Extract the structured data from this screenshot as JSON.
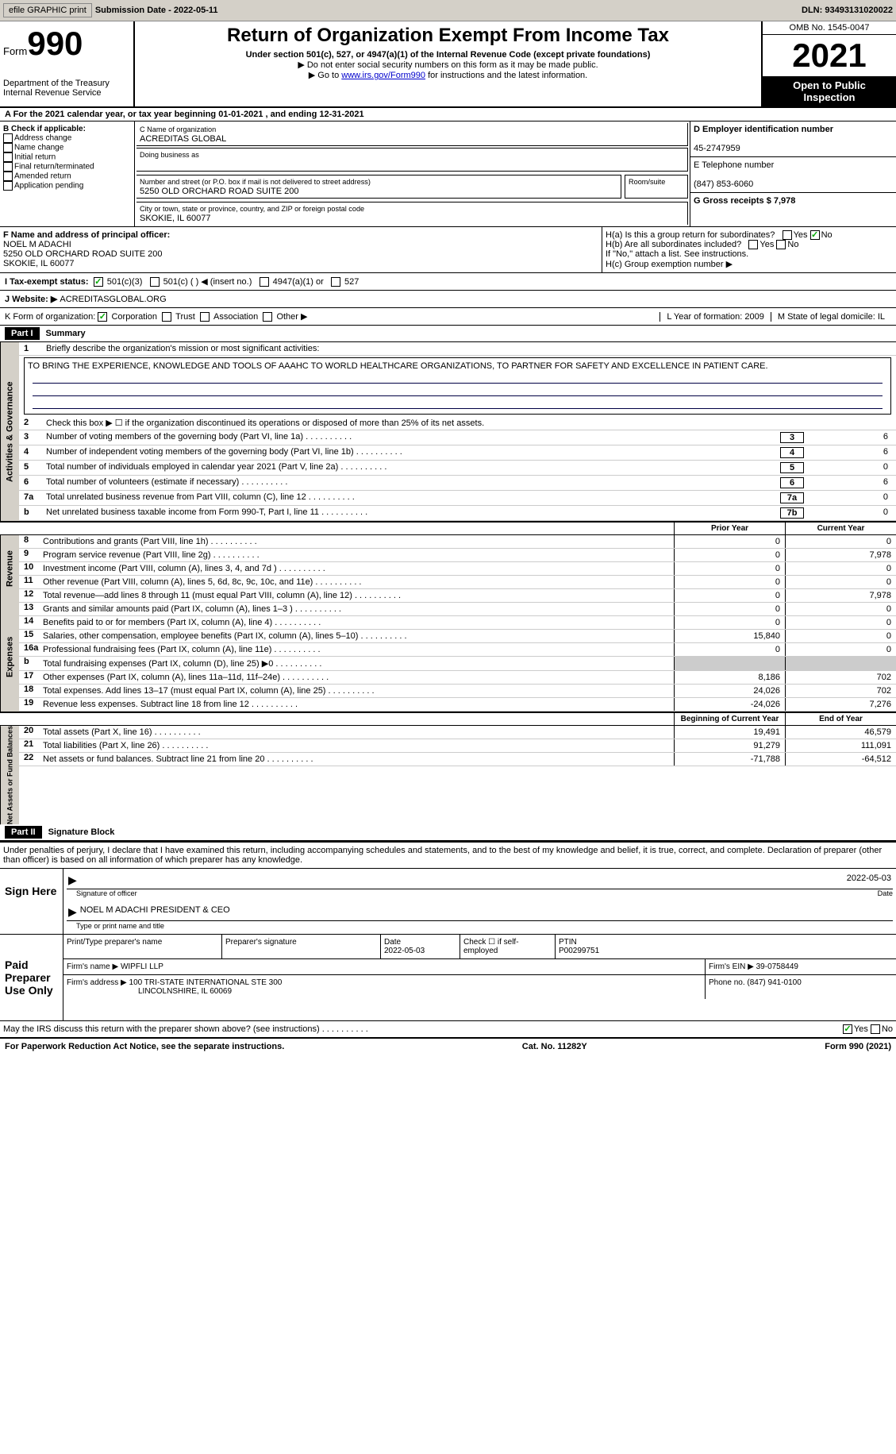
{
  "toolbar": {
    "efile": "efile GRAPHIC print",
    "print_btn": "print -",
    "sub_date_label": "Submission Date - 2022-05-11",
    "dln": "DLN: 93493131020022"
  },
  "header": {
    "form_word": "Form",
    "form_num": "990",
    "title": "Return of Organization Exempt From Income Tax",
    "subtitle": "Under section 501(c), 527, or 4947(a)(1) of the Internal Revenue Code (except private foundations)",
    "note1": "▶ Do not enter social security numbers on this form as it may be made public.",
    "note2_pre": "▶ Go to ",
    "note2_link": "www.irs.gov/Form990",
    "note2_post": " for instructions and the latest information.",
    "dept": "Department of the Treasury",
    "irs": "Internal Revenue Service",
    "omb": "OMB No. 1545-0047",
    "year": "2021",
    "open": "Open to Public Inspection"
  },
  "line_a": "A For the 2021 calendar year, or tax year beginning 01-01-2021    , and ending 12-31-2021",
  "section_b": {
    "hdr": "B Check if applicable:",
    "items": [
      "Address change",
      "Name change",
      "Initial return",
      "Final return/terminated",
      "Amended return",
      "Application pending"
    ]
  },
  "section_c": {
    "name_lbl": "C Name of organization",
    "name_val": "ACREDITAS GLOBAL",
    "dba_lbl": "Doing business as",
    "addr_lbl": "Number and street (or P.O. box if mail is not delivered to street address)",
    "room_lbl": "Room/suite",
    "addr_val": "5250 OLD ORCHARD ROAD SUITE 200",
    "city_lbl": "City or town, state or province, country, and ZIP or foreign postal code",
    "city_val": "SKOKIE, IL  60077"
  },
  "section_d": {
    "ein_lbl": "D Employer identification number",
    "ein_val": "45-2747959",
    "tel_lbl": "E Telephone number",
    "tel_val": "(847) 853-6060",
    "gross_lbl": "G Gross receipts $ 7,978"
  },
  "section_f": {
    "lbl": "F Name and address of principal officer:",
    "name": "NOEL M ADACHI",
    "addr1": "5250 OLD ORCHARD ROAD SUITE 200",
    "addr2": "SKOKIE, IL  60077"
  },
  "section_h": {
    "ha": "H(a)  Is this a group return for subordinates?",
    "hb": "H(b)  Are all subordinates included?",
    "hb_note": "If \"No,\" attach a list. See instructions.",
    "hc": "H(c)  Group exemption number ▶",
    "yes": "Yes",
    "no": "No"
  },
  "tax_status": {
    "lbl": "I    Tax-exempt status:",
    "o1": "501(c)(3)",
    "o2": "501(c) (  ) ◀ (insert no.)",
    "o3": "4947(a)(1) or",
    "o4": "527"
  },
  "website": {
    "lbl": "J    Website: ▶",
    "val": "ACREDITASGLOBAL.ORG"
  },
  "korg": {
    "lbl": "K Form of organization:",
    "corp": "Corporation",
    "trust": "Trust",
    "assoc": "Association",
    "other": "Other ▶",
    "l": "L Year of formation: 2009",
    "m": "M State of legal domicile: IL"
  },
  "parts": {
    "p1": "Part I",
    "p1t": "Summary",
    "p2": "Part II",
    "p2t": "Signature Block"
  },
  "mission": {
    "lbl": "Briefly describe the organization's mission or most significant activities:",
    "val": "TO BRING THE EXPERIENCE, KNOWLEDGE AND TOOLS OF AAAHC TO WORLD HEALTHCARE ORGANIZATIONS, TO PARTNER FOR SAFETY AND EXCELLENCE IN PATIENT CARE."
  },
  "summary": {
    "l2": "Check this box ▶ ☐ if the organization discontinued its operations or disposed of more than 25% of its net assets.",
    "l3": "Number of voting members of the governing body (Part VI, line 1a)",
    "l4": "Number of independent voting members of the governing body (Part VI, line 1b)",
    "l5": "Total number of individuals employed in calendar year 2021 (Part V, line 2a)",
    "l6": "Total number of volunteers (estimate if necessary)",
    "l7a": "Total unrelated business revenue from Part VIII, column (C), line 12",
    "l7b": "Net unrelated business taxable income from Form 990-T, Part I, line 11",
    "vals": {
      "3": "6",
      "4": "6",
      "5": "0",
      "6": "6",
      "7a": "0",
      "7b": "0"
    }
  },
  "cols": {
    "prior": "Prior Year",
    "curr": "Current Year",
    "beg": "Beginning of Current Year",
    "end": "End of Year"
  },
  "vtabs": {
    "ag": "Activities & Governance",
    "rev": "Revenue",
    "exp": "Expenses",
    "na": "Net Assets or\nFund Balances"
  },
  "rev": [
    {
      "n": "8",
      "t": "Contributions and grants (Part VIII, line 1h)",
      "p": "0",
      "c": "0"
    },
    {
      "n": "9",
      "t": "Program service revenue (Part VIII, line 2g)",
      "p": "0",
      "c": "7,978"
    },
    {
      "n": "10",
      "t": "Investment income (Part VIII, column (A), lines 3, 4, and 7d )",
      "p": "0",
      "c": "0"
    },
    {
      "n": "11",
      "t": "Other revenue (Part VIII, column (A), lines 5, 6d, 8c, 9c, 10c, and 11e)",
      "p": "0",
      "c": "0"
    },
    {
      "n": "12",
      "t": "Total revenue—add lines 8 through 11 (must equal Part VIII, column (A), line 12)",
      "p": "0",
      "c": "7,978"
    }
  ],
  "exp": [
    {
      "n": "13",
      "t": "Grants and similar amounts paid (Part IX, column (A), lines 1–3 )",
      "p": "0",
      "c": "0"
    },
    {
      "n": "14",
      "t": "Benefits paid to or for members (Part IX, column (A), line 4)",
      "p": "0",
      "c": "0"
    },
    {
      "n": "15",
      "t": "Salaries, other compensation, employee benefits (Part IX, column (A), lines 5–10)",
      "p": "15,840",
      "c": "0"
    },
    {
      "n": "16a",
      "t": "Professional fundraising fees (Part IX, column (A), line 11e)",
      "p": "0",
      "c": "0"
    },
    {
      "n": "b",
      "t": "Total fundraising expenses (Part IX, column (D), line 25) ▶0",
      "p": "",
      "c": "",
      "shade": true
    },
    {
      "n": "17",
      "t": "Other expenses (Part IX, column (A), lines 11a–11d, 11f–24e)",
      "p": "8,186",
      "c": "702"
    },
    {
      "n": "18",
      "t": "Total expenses. Add lines 13–17 (must equal Part IX, column (A), line 25)",
      "p": "24,026",
      "c": "702"
    },
    {
      "n": "19",
      "t": "Revenue less expenses. Subtract line 18 from line 12",
      "p": "-24,026",
      "c": "7,276"
    }
  ],
  "na": [
    {
      "n": "20",
      "t": "Total assets (Part X, line 16)",
      "p": "19,491",
      "c": "46,579"
    },
    {
      "n": "21",
      "t": "Total liabilities (Part X, line 26)",
      "p": "91,279",
      "c": "111,091"
    },
    {
      "n": "22",
      "t": "Net assets or fund balances. Subtract line 21 from line 20",
      "p": "-71,788",
      "c": "-64,512"
    }
  ],
  "sig": {
    "decl": "Under penalties of perjury, I declare that I have examined this return, including accompanying schedules and statements, and to the best of my knowledge and belief, it is true, correct, and complete. Declaration of preparer (other than officer) is based on all information of which preparer has any knowledge.",
    "sign_here": "Sign Here",
    "sig_off": "Signature of officer",
    "date": "Date",
    "sig_date": "2022-05-03",
    "name_title": "NOEL M ADACHI  PRESIDENT & CEO",
    "type_lbl": "Type or print name and title",
    "paid": "Paid Preparer Use Only",
    "pname_lbl": "Print/Type preparer's name",
    "psig_lbl": "Preparer's signature",
    "pdate_lbl": "Date",
    "pdate_val": "2022-05-03",
    "check_lbl": "Check ☐ if self-employed",
    "ptin_lbl": "PTIN",
    "ptin_val": "P00299751",
    "firm_lbl": "Firm's name    ▶",
    "firm_val": "WIPFLI LLP",
    "fein_lbl": "Firm's EIN ▶",
    "fein_val": "39-0758449",
    "faddr_lbl": "Firm's address ▶",
    "faddr_val": "100 TRI-STATE INTERNATIONAL STE 300",
    "faddr2": "LINCOLNSHIRE, IL  60069",
    "phone_lbl": "Phone no.",
    "phone_val": "(847) 941-0100",
    "discuss": "May the IRS discuss this return with the preparer shown above? (see instructions)"
  },
  "footer": {
    "left": "For Paperwork Reduction Act Notice, see the separate instructions.",
    "mid": "Cat. No. 11282Y",
    "right": "Form 990 (2021)"
  }
}
